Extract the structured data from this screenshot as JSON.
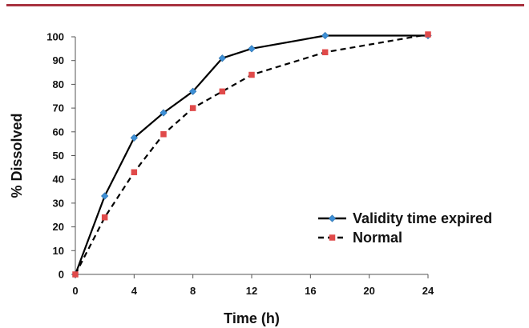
{
  "chart_data": {
    "type": "line",
    "title": "",
    "xlabel": "Time (h)",
    "ylabel": "% Dissolved",
    "xlim": [
      0,
      24
    ],
    "ylim": [
      0,
      100
    ],
    "xticks": [
      0,
      4,
      8,
      12,
      16,
      20,
      24
    ],
    "yticks": [
      0,
      10,
      20,
      30,
      40,
      50,
      60,
      70,
      80,
      90,
      100
    ],
    "grid": false,
    "legend_position": "right",
    "series": [
      {
        "name": "Validity time expired",
        "line_style": "solid",
        "line_color": "#000000",
        "marker": "diamond",
        "marker_color": "#3d8fd6",
        "x": [
          0,
          2,
          4,
          6,
          8,
          10,
          12,
          17,
          24
        ],
        "y": [
          0,
          33,
          57.5,
          68,
          77,
          91,
          95,
          100.5,
          100.5
        ]
      },
      {
        "name": "Normal",
        "line_style": "dashed",
        "line_color": "#000000",
        "marker": "square",
        "marker_color": "#e04a4a",
        "x": [
          0,
          2,
          4,
          6,
          8,
          10,
          12,
          17,
          24
        ],
        "y": [
          0,
          24,
          43,
          59,
          70,
          77,
          84,
          93.5,
          101
        ]
      }
    ]
  }
}
